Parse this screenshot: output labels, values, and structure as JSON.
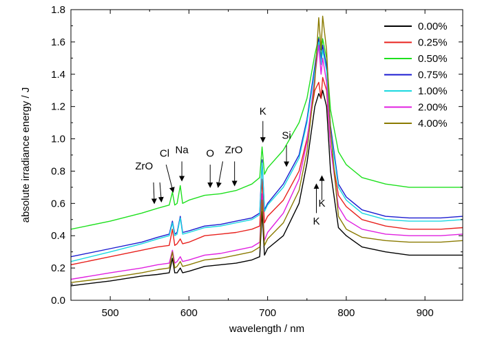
{
  "chart_data": {
    "type": "line",
    "xlabel": "wavelength / nm",
    "ylabel": "absolute irradiance energy / J",
    "xlim": [
      450,
      948
    ],
    "ylim": [
      0.0,
      1.8
    ],
    "xticks": [
      500,
      600,
      700,
      800,
      900
    ],
    "yticks": [
      0.0,
      0.2,
      0.4,
      0.6,
      0.8,
      1.0,
      1.2,
      1.4,
      1.6,
      1.8
    ],
    "legend_position": "top-right",
    "series": [
      {
        "name": "0.00%",
        "color": "#000000",
        "x": [
          450,
          500,
          540,
          560,
          575,
          579,
          582,
          585,
          589,
          592,
          600,
          620,
          640,
          660,
          680,
          690,
          693,
          696,
          700,
          720,
          740,
          750,
          760,
          765,
          768,
          770,
          775,
          780,
          790,
          800,
          820,
          850,
          880,
          920,
          948
        ],
        "y": [
          0.09,
          0.12,
          0.15,
          0.16,
          0.17,
          0.26,
          0.17,
          0.17,
          0.2,
          0.17,
          0.18,
          0.21,
          0.22,
          0.23,
          0.25,
          0.27,
          0.55,
          0.28,
          0.32,
          0.4,
          0.6,
          0.85,
          1.2,
          1.28,
          1.25,
          1.3,
          1.2,
          0.8,
          0.45,
          0.4,
          0.33,
          0.3,
          0.28,
          0.28,
          0.28
        ]
      },
      {
        "name": "0.25%",
        "color": "#e8201c",
        "x": [
          450,
          500,
          540,
          560,
          575,
          579,
          582,
          585,
          589,
          592,
          600,
          620,
          640,
          660,
          680,
          690,
          693,
          696,
          700,
          720,
          740,
          750,
          760,
          765,
          768,
          770,
          775,
          780,
          790,
          800,
          820,
          850,
          880,
          920,
          948
        ],
        "y": [
          0.22,
          0.27,
          0.31,
          0.33,
          0.34,
          0.44,
          0.34,
          0.35,
          0.38,
          0.35,
          0.36,
          0.4,
          0.41,
          0.42,
          0.44,
          0.46,
          0.75,
          0.48,
          0.52,
          0.62,
          0.8,
          1.0,
          1.3,
          1.35,
          1.25,
          1.38,
          1.3,
          0.95,
          0.65,
          0.58,
          0.5,
          0.46,
          0.44,
          0.44,
          0.45
        ]
      },
      {
        "name": "0.50%",
        "color": "#1de01d",
        "x": [
          450,
          500,
          540,
          560,
          575,
          579,
          582,
          585,
          589,
          592,
          600,
          620,
          640,
          660,
          680,
          690,
          693,
          696,
          700,
          720,
          740,
          750,
          760,
          765,
          768,
          770,
          775,
          780,
          790,
          800,
          820,
          850,
          880,
          920,
          948
        ],
        "y": [
          0.44,
          0.49,
          0.54,
          0.57,
          0.59,
          0.67,
          0.59,
          0.6,
          0.71,
          0.6,
          0.62,
          0.65,
          0.66,
          0.68,
          0.72,
          0.76,
          0.95,
          0.78,
          0.82,
          0.93,
          1.1,
          1.25,
          1.52,
          1.63,
          1.5,
          1.62,
          1.5,
          1.18,
          0.92,
          0.84,
          0.76,
          0.72,
          0.7,
          0.7,
          0.7
        ]
      },
      {
        "name": "0.75%",
        "color": "#1a1ad0",
        "x": [
          450,
          500,
          540,
          560,
          575,
          579,
          582,
          585,
          589,
          592,
          600,
          620,
          640,
          660,
          680,
          690,
          693,
          696,
          700,
          720,
          740,
          750,
          760,
          765,
          768,
          770,
          775,
          780,
          790,
          800,
          820,
          850,
          880,
          920,
          948
        ],
        "y": [
          0.27,
          0.32,
          0.36,
          0.39,
          0.41,
          0.49,
          0.41,
          0.42,
          0.52,
          0.42,
          0.43,
          0.46,
          0.47,
          0.49,
          0.51,
          0.54,
          0.87,
          0.56,
          0.6,
          0.72,
          0.9,
          1.12,
          1.45,
          1.62,
          1.48,
          1.58,
          1.45,
          1.08,
          0.72,
          0.64,
          0.56,
          0.52,
          0.51,
          0.51,
          0.52
        ]
      },
      {
        "name": "1.00%",
        "color": "#19d8e0",
        "x": [
          450,
          500,
          540,
          560,
          575,
          579,
          582,
          585,
          589,
          592,
          600,
          620,
          640,
          660,
          680,
          690,
          693,
          696,
          700,
          720,
          740,
          750,
          760,
          765,
          768,
          770,
          775,
          780,
          790,
          800,
          820,
          850,
          880,
          920,
          948
        ],
        "y": [
          0.24,
          0.3,
          0.35,
          0.38,
          0.4,
          0.48,
          0.4,
          0.41,
          0.51,
          0.41,
          0.42,
          0.45,
          0.46,
          0.48,
          0.5,
          0.53,
          0.85,
          0.55,
          0.59,
          0.7,
          0.88,
          1.1,
          1.42,
          1.6,
          1.46,
          1.55,
          1.42,
          1.05,
          0.7,
          0.62,
          0.54,
          0.5,
          0.49,
          0.49,
          0.5
        ]
      },
      {
        "name": "2.00%",
        "color": "#e020e0",
        "x": [
          450,
          500,
          540,
          560,
          575,
          579,
          582,
          585,
          589,
          592,
          600,
          620,
          640,
          660,
          680,
          690,
          693,
          696,
          700,
          720,
          740,
          750,
          760,
          765,
          768,
          770,
          775,
          780,
          790,
          800,
          820,
          850,
          880,
          920,
          948
        ],
        "y": [
          0.13,
          0.17,
          0.2,
          0.22,
          0.23,
          0.31,
          0.23,
          0.24,
          0.27,
          0.24,
          0.25,
          0.28,
          0.29,
          0.31,
          0.33,
          0.36,
          0.66,
          0.37,
          0.42,
          0.54,
          0.75,
          0.98,
          1.38,
          1.58,
          1.4,
          1.5,
          1.35,
          0.95,
          0.58,
          0.5,
          0.44,
          0.41,
          0.4,
          0.4,
          0.41
        ]
      },
      {
        "name": "4.00%",
        "color": "#8a7a00",
        "x": [
          450,
          500,
          540,
          560,
          575,
          579,
          582,
          585,
          589,
          592,
          600,
          620,
          640,
          660,
          680,
          690,
          693,
          696,
          700,
          720,
          740,
          750,
          760,
          765,
          768,
          770,
          775,
          780,
          790,
          800,
          820,
          850,
          880,
          920,
          948
        ],
        "y": [
          0.11,
          0.14,
          0.17,
          0.19,
          0.2,
          0.3,
          0.2,
          0.21,
          0.24,
          0.21,
          0.22,
          0.25,
          0.26,
          0.28,
          0.3,
          0.33,
          0.62,
          0.34,
          0.38,
          0.48,
          0.68,
          0.92,
          1.35,
          1.75,
          1.55,
          1.76,
          1.55,
          1.05,
          0.52,
          0.44,
          0.39,
          0.37,
          0.36,
          0.36,
          0.37
        ]
      }
    ],
    "annotations": [
      {
        "label": "ZrO",
        "text_x": 543,
        "text_y": 0.81,
        "arrows": [
          [
            555,
            0.73,
            556,
            0.6
          ],
          [
            563,
            0.73,
            565,
            0.61
          ]
        ]
      },
      {
        "label": "Cl",
        "text_x": 569,
        "text_y": 0.89,
        "arrows": [
          [
            571,
            0.84,
            580,
            0.67
          ]
        ]
      },
      {
        "label": "Na",
        "text_x": 591,
        "text_y": 0.91,
        "arrows": [
          [
            591,
            0.86,
            591,
            0.74
          ]
        ]
      },
      {
        "label": "O",
        "text_x": 627,
        "text_y": 0.89,
        "arrows": [
          [
            627,
            0.84,
            627,
            0.7
          ]
        ]
      },
      {
        "label": "ZrO",
        "text_x": 657,
        "text_y": 0.91,
        "arrows": [
          [
            643,
            0.86,
            637,
            0.7
          ],
          [
            658,
            0.86,
            658,
            0.71
          ]
        ]
      },
      {
        "label": "K",
        "text_x": 694,
        "text_y": 1.15,
        "arrows": [
          [
            694,
            1.11,
            694,
            0.98
          ]
        ]
      },
      {
        "label": "Si",
        "text_x": 724,
        "text_y": 1.0,
        "arrows": [
          [
            724,
            0.96,
            724,
            0.83
          ]
        ]
      },
      {
        "label": "K",
        "text_x": 769,
        "text_y": 0.58,
        "arrows": [
          [
            769,
            0.62,
            769,
            0.77
          ]
        ]
      },
      {
        "label": "K",
        "text_x": 762,
        "text_y": 0.47,
        "arrows": [
          [
            762,
            0.54,
            762,
            0.72
          ]
        ]
      }
    ]
  }
}
